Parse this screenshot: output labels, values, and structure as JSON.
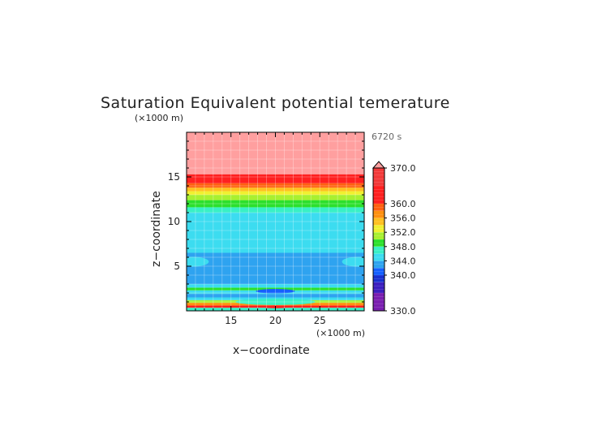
{
  "chart_data": {
    "type": "heatmap",
    "title": "Saturation Equivalent potential temerature",
    "xlabel": "x−coordinate",
    "ylabel": "z−coordinate",
    "x_unit": "(×1000 m)",
    "y_unit": "(×1000 m)",
    "time_label": "6720 s",
    "xlim": [
      10,
      30
    ],
    "ylim": [
      0,
      20
    ],
    "x_ticks": [
      15,
      20,
      25
    ],
    "y_ticks": [
      5,
      10,
      15
    ],
    "x_tick_labels": [
      "15",
      "20",
      "25"
    ],
    "y_tick_labels": [
      "5",
      "10",
      "15"
    ],
    "grid": true,
    "colorbar": {
      "min": 330,
      "max": 370,
      "ticks": [
        330,
        340,
        344,
        348,
        352,
        356,
        360,
        370
      ],
      "tick_labels": [
        "330.0",
        "340.0",
        "344.0",
        "348.0",
        "352.0",
        "356.0",
        "360.0",
        "370.0"
      ],
      "colors": [
        {
          "value": 330,
          "color": "#7a1fb0"
        },
        {
          "value": 335,
          "color": "#3c1fbf"
        },
        {
          "value": 338,
          "color": "#1830d0"
        },
        {
          "value": 340,
          "color": "#1560ff"
        },
        {
          "value": 342,
          "color": "#2ea3f0"
        },
        {
          "value": 344,
          "color": "#3cdcf0"
        },
        {
          "value": 346,
          "color": "#39f0c6"
        },
        {
          "value": 348,
          "color": "#2ce02c"
        },
        {
          "value": 350,
          "color": "#a8f030"
        },
        {
          "value": 352,
          "color": "#f0f030"
        },
        {
          "value": 354,
          "color": "#ffc020"
        },
        {
          "value": 356,
          "color": "#ff9010"
        },
        {
          "value": 358,
          "color": "#ff6010"
        },
        {
          "value": 360,
          "color": "#ff2020"
        },
        {
          "value": 365,
          "color": "#f23a3a"
        },
        {
          "value": 370,
          "color": "#ff9f9f"
        }
      ]
    },
    "bands": [
      {
        "z_min": 0.0,
        "z_max": 0.35,
        "value": 346
      },
      {
        "z_min": 0.35,
        "z_max": 0.6,
        "value": 360
      },
      {
        "z_min": 0.6,
        "z_max": 0.9,
        "value": 356
      },
      {
        "z_min": 0.9,
        "z_max": 1.2,
        "value": 350
      },
      {
        "z_min": 1.2,
        "z_max": 1.5,
        "value": 344
      },
      {
        "z_min": 1.5,
        "z_max": 1.9,
        "value": 342
      },
      {
        "z_min": 1.9,
        "z_max": 2.3,
        "value": 344
      },
      {
        "z_min": 2.3,
        "z_max": 2.6,
        "value": 348
      },
      {
        "z_min": 2.6,
        "z_max": 3.0,
        "value": 344
      },
      {
        "z_min": 3.0,
        "z_max": 6.5,
        "value": 342
      },
      {
        "z_min": 6.5,
        "z_max": 11.0,
        "value": 344
      },
      {
        "z_min": 11.0,
        "z_max": 11.6,
        "value": 346
      },
      {
        "z_min": 11.6,
        "z_max": 12.4,
        "value": 348
      },
      {
        "z_min": 12.4,
        "z_max": 13.0,
        "value": 350
      },
      {
        "z_min": 13.0,
        "z_max": 13.4,
        "value": 352
      },
      {
        "z_min": 13.4,
        "z_max": 13.8,
        "value": 354
      },
      {
        "z_min": 13.8,
        "z_max": 14.3,
        "value": 358
      },
      {
        "z_min": 14.3,
        "z_max": 15.3,
        "value": 360
      },
      {
        "z_min": 15.3,
        "z_max": 20.0,
        "value": 370
      }
    ],
    "features": [
      {
        "kind": "ellipse",
        "x": 10.7,
        "z": 5.5,
        "rx": 1.8,
        "rz": 0.55,
        "value": 344
      },
      {
        "kind": "ellipse",
        "x": 29.3,
        "z": 5.5,
        "rx": 1.8,
        "rz": 0.55,
        "value": 344
      },
      {
        "kind": "ellipse",
        "x": 20.0,
        "z": 2.2,
        "rx": 2.2,
        "rz": 0.25,
        "value": 340
      },
      {
        "kind": "ellipse",
        "x": 20.0,
        "z": 1.0,
        "rx": 4.5,
        "rz": 0.35,
        "value": 346
      },
      {
        "kind": "ellipse",
        "x": 20.0,
        "z": 0.45,
        "rx": 1.5,
        "rz": 0.15,
        "value": 362
      }
    ]
  }
}
